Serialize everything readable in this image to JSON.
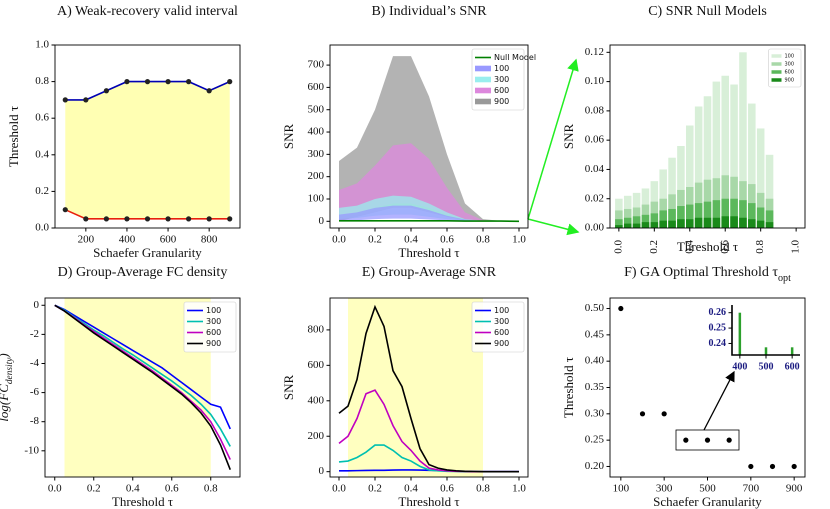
{
  "chart_data": [
    {
      "type": "line",
      "title": "A) Weak-recovery valid interval",
      "xlabel": "Schaefer Granularity",
      "ylabel": "Threshold τ",
      "x": [
        100,
        200,
        300,
        400,
        500,
        600,
        700,
        800,
        900
      ],
      "series": [
        {
          "color": "#0000b4",
          "values": [
            0.7,
            0.7,
            0.75,
            0.8,
            0.8,
            0.8,
            0.8,
            0.75,
            0.8
          ]
        },
        {
          "color": "#e8200c",
          "values": [
            0.1,
            0.05,
            0.05,
            0.05,
            0.05,
            0.05,
            0.05,
            0.05,
            0.05
          ]
        }
      ],
      "fill_between": "#ffffb3",
      "markers": true,
      "xlim": [
        50,
        950
      ],
      "xticks": [
        200,
        400,
        600,
        800
      ],
      "ylim": [
        0,
        1
      ],
      "yticks": [
        {
          "value": 0,
          "label": "0.0"
        },
        0.2,
        0.4,
        0.6,
        0.8,
        {
          "value": 1,
          "label": "1.0"
        }
      ]
    },
    {
      "type": "area",
      "title": "B) Individual’s SNR",
      "xlabel": "Threshold τ",
      "ylabel": "SNR",
      "x": [
        0,
        0.1,
        0.2,
        0.3,
        0.4,
        0.5,
        0.6,
        0.7,
        0.8,
        0.9,
        1
      ],
      "series": [
        {
          "name": "Null Model",
          "color": "#008000",
          "values": [
            2,
            2,
            2,
            2,
            2,
            2,
            2,
            1,
            1,
            1,
            0
          ]
        },
        {
          "name": "100",
          "color": "#9999ff",
          "values": [
            30,
            40,
            60,
            70,
            70,
            50,
            25,
            8,
            1,
            0,
            0
          ],
          "lower": [
            0,
            5,
            10,
            12,
            12,
            8,
            4,
            1,
            0,
            0,
            0
          ]
        },
        {
          "name": "300",
          "color": "#99eeee",
          "values": [
            60,
            70,
            100,
            115,
            110,
            80,
            40,
            10,
            2,
            0,
            0
          ],
          "lower": [
            10,
            15,
            25,
            30,
            30,
            20,
            10,
            3,
            0,
            0,
            0
          ]
        },
        {
          "name": "600",
          "color": "#dd88dd",
          "values": [
            140,
            170,
            250,
            340,
            350,
            280,
            150,
            40,
            5,
            0,
            0
          ],
          "lower": [
            20,
            40,
            60,
            80,
            80,
            60,
            30,
            10,
            0,
            0,
            0
          ]
        },
        {
          "name": "900",
          "color": "#999999",
          "values": [
            270,
            330,
            500,
            740,
            740,
            560,
            300,
            80,
            10,
            2,
            0
          ],
          "lower": [
            0,
            20,
            40,
            60,
            60,
            40,
            20,
            5,
            0,
            0,
            0
          ]
        }
      ],
      "legend": "upper right",
      "xlim": [
        -0.05,
        1.05
      ],
      "xticks": [
        {
          "value": 0,
          "label": "0.0"
        },
        0.2,
        0.4,
        0.6,
        0.8,
        {
          "value": 1,
          "label": "1.0"
        }
      ],
      "ylim": [
        -30,
        790
      ],
      "yticks": [
        0,
        100,
        200,
        300,
        400,
        500,
        600,
        700
      ]
    },
    {
      "type": "bar",
      "title": "C) SNR Null Models",
      "xlabel": "Threshold τ",
      "ylabel": "SNR",
      "x": [
        0,
        0.05,
        0.1,
        0.15,
        0.2,
        0.25,
        0.3,
        0.35,
        0.4,
        0.45,
        0.5,
        0.55,
        0.6,
        0.65,
        0.7,
        0.75,
        0.8,
        0.85
      ],
      "series": [
        {
          "name": "100",
          "color": "#d8efd8",
          "values": [
            0.02,
            0.022,
            0.024,
            0.027,
            0.032,
            0.04,
            0.048,
            0.056,
            0.07,
            0.083,
            0.09,
            0.1,
            0.104,
            0.098,
            0.12,
            0.085,
            0.068,
            0.05
          ]
        },
        {
          "name": "300",
          "color": "#a8d8a8",
          "values": [
            0.012,
            0.013,
            0.014,
            0.016,
            0.018,
            0.02,
            0.023,
            0.026,
            0.028,
            0.031,
            0.033,
            0.034,
            0.036,
            0.035,
            0.032,
            0.03,
            0.024,
            0.02
          ]
        },
        {
          "name": "600",
          "color": "#5cb85c",
          "values": [
            0.006,
            0.007,
            0.008,
            0.009,
            0.01,
            0.012,
            0.013,
            0.015,
            0.016,
            0.017,
            0.018,
            0.019,
            0.02,
            0.02,
            0.019,
            0.017,
            0.014,
            0.012
          ]
        },
        {
          "name": "900",
          "color": "#1a8a1a",
          "values": [
            0.002,
            0.003,
            0.003,
            0.004,
            0.004,
            0.005,
            0.005,
            0.006,
            0.006,
            0.007,
            0.007,
            0.007,
            0.008,
            0.008,
            0.007,
            0.006,
            0.005,
            0.004
          ]
        }
      ],
      "legend": "upper right",
      "xlim": [
        -0.05,
        1.05
      ],
      "xticks": [
        {
          "value": 0,
          "label": "0.0"
        },
        0.2,
        0.4,
        0.6,
        0.8,
        {
          "value": 1,
          "label": "1.0"
        }
      ],
      "ylim": [
        0,
        0.125
      ],
      "yticks": [
        {
          "value": 0,
          "label": "0.00"
        },
        0.02,
        0.04,
        0.06,
        0.08,
        {
          "value": 0.1,
          "label": "0.10"
        },
        0.12
      ]
    },
    {
      "type": "line",
      "title": "D) Group-Average FC density",
      "xlabel": "Threshold τ",
      "ylabel": "log(FC",
      "ylabel_sub": "density",
      "ylabel_end": ")",
      "x": [
        0,
        0.05,
        0.1,
        0.15,
        0.2,
        0.25,
        0.3,
        0.35,
        0.4,
        0.45,
        0.5,
        0.55,
        0.6,
        0.65,
        0.7,
        0.75,
        0.8,
        0.85,
        0.9
      ],
      "series": [
        {
          "name": "100",
          "color": "#0000ff",
          "values": [
            0,
            -0.3,
            -0.7,
            -1.1,
            -1.5,
            -1.9,
            -2.3,
            -2.7,
            -3.1,
            -3.5,
            -3.9,
            -4.3,
            -4.8,
            -5.3,
            -5.8,
            -6.3,
            -6.8,
            -7,
            -8.5
          ]
        },
        {
          "name": "300",
          "color": "#00c0b0",
          "values": [
            0,
            -0.35,
            -0.8,
            -1.25,
            -1.7,
            -2.1,
            -2.55,
            -3,
            -3.4,
            -3.85,
            -4.3,
            -4.75,
            -5.2,
            -5.7,
            -6.2,
            -6.8,
            -7.5,
            -8.5,
            -9.7
          ]
        },
        {
          "name": "600",
          "color": "#c000c0",
          "values": [
            0,
            -0.4,
            -0.85,
            -1.35,
            -1.8,
            -2.25,
            -2.7,
            -3.15,
            -3.6,
            -4.05,
            -4.5,
            -5,
            -5.5,
            -6,
            -6.6,
            -7.2,
            -8,
            -9.2,
            -10.6
          ]
        },
        {
          "name": "900",
          "color": "#000000",
          "values": [
            0,
            -0.4,
            -0.9,
            -1.4,
            -1.9,
            -2.35,
            -2.8,
            -3.25,
            -3.7,
            -4.15,
            -4.6,
            -5.1,
            -5.6,
            -6.1,
            -6.7,
            -7.4,
            -8.3,
            -9.6,
            -11.3
          ]
        }
      ],
      "span": [
        0.05,
        0.8
      ],
      "span_color": "#ffffc0",
      "legend": "upper right",
      "xlim": [
        -0.05,
        0.95
      ],
      "xticks": [
        {
          "value": 0,
          "label": "0.0"
        },
        0.2,
        0.4,
        0.6,
        0.8
      ],
      "ylim": [
        -11.8,
        0.5
      ],
      "yticks": [
        0,
        -2,
        -4,
        -6,
        -8,
        -10
      ]
    },
    {
      "type": "line",
      "title": "E) Group-Average SNR",
      "xlabel": "Threshold τ",
      "ylabel": "SNR",
      "x": [
        0,
        0.05,
        0.1,
        0.15,
        0.2,
        0.25,
        0.3,
        0.35,
        0.4,
        0.45,
        0.5,
        0.55,
        0.6,
        0.65,
        0.7,
        0.75,
        0.8,
        0.85,
        0.9,
        0.95,
        1
      ],
      "series": [
        {
          "name": "100",
          "color": "#0000ff",
          "values": [
            5,
            5,
            6,
            7,
            8,
            8,
            9,
            10,
            10,
            9,
            8,
            6,
            5,
            3,
            2,
            1,
            0,
            0,
            0,
            0,
            0
          ]
        },
        {
          "name": "300",
          "color": "#00c0b0",
          "values": [
            55,
            60,
            80,
            110,
            150,
            150,
            120,
            80,
            60,
            30,
            10,
            5,
            2,
            1,
            0,
            0,
            0,
            0,
            0,
            0,
            0
          ]
        },
        {
          "name": "600",
          "color": "#c000c0",
          "values": [
            160,
            200,
            300,
            440,
            460,
            380,
            260,
            170,
            120,
            60,
            20,
            10,
            5,
            2,
            1,
            0,
            0,
            0,
            0,
            0,
            0
          ]
        },
        {
          "name": "900",
          "color": "#000000",
          "values": [
            330,
            370,
            520,
            780,
            930,
            820,
            570,
            480,
            300,
            130,
            40,
            20,
            10,
            5,
            2,
            1,
            0,
            0,
            0,
            0,
            0
          ]
        }
      ],
      "span": [
        0.05,
        0.8
      ],
      "span_color": "#ffffc0",
      "legend": "upper right",
      "xlim": [
        -0.05,
        1.05
      ],
      "xticks": [
        {
          "value": 0,
          "label": "0.0"
        },
        0.2,
        0.4,
        0.6,
        0.8,
        {
          "value": 1,
          "label": "1.0"
        }
      ],
      "ylim": [
        -30,
        980
      ],
      "yticks": [
        0,
        200,
        400,
        600,
        800
      ]
    },
    {
      "type": "scatter",
      "title": "F) GA Optimal Threshold τ",
      "title_sub": "opt",
      "xlabel": "Schaefer Granularity",
      "ylabel": "Threshold τ",
      "x": [
        100,
        200,
        300,
        400,
        500,
        600,
        700,
        800,
        900
      ],
      "values": [
        0.5,
        0.3,
        0.3,
        0.25,
        0.25,
        0.25,
        0.2,
        0.2,
        0.2
      ],
      "color": "#000000",
      "xlim": [
        50,
        950
      ],
      "xticks": [
        100,
        300,
        500,
        700,
        900
      ],
      "ylim": [
        0.18,
        0.52
      ],
      "yticks": [
        {
          "value": 0.2,
          "label": "0.20"
        },
        0.25,
        {
          "value": 0.3,
          "label": "0.30"
        },
        0.35,
        {
          "value": 0.4,
          "label": "0.40"
        },
        0.45,
        {
          "value": 0.5,
          "label": "0.50"
        }
      ],
      "inset": {
        "x": [
          400,
          500,
          600
        ],
        "values": [
          0.26,
          0.2375,
          0.2375
        ],
        "color": "#2ca02c",
        "tick_color": "#1a1a80",
        "xlim": [
          370,
          630
        ],
        "xticks": [
          400,
          500,
          600
        ],
        "ylim": [
          0.2325,
          0.265
        ],
        "yticks": [
          0.24,
          0.25,
          0.26
        ]
      }
    }
  ]
}
